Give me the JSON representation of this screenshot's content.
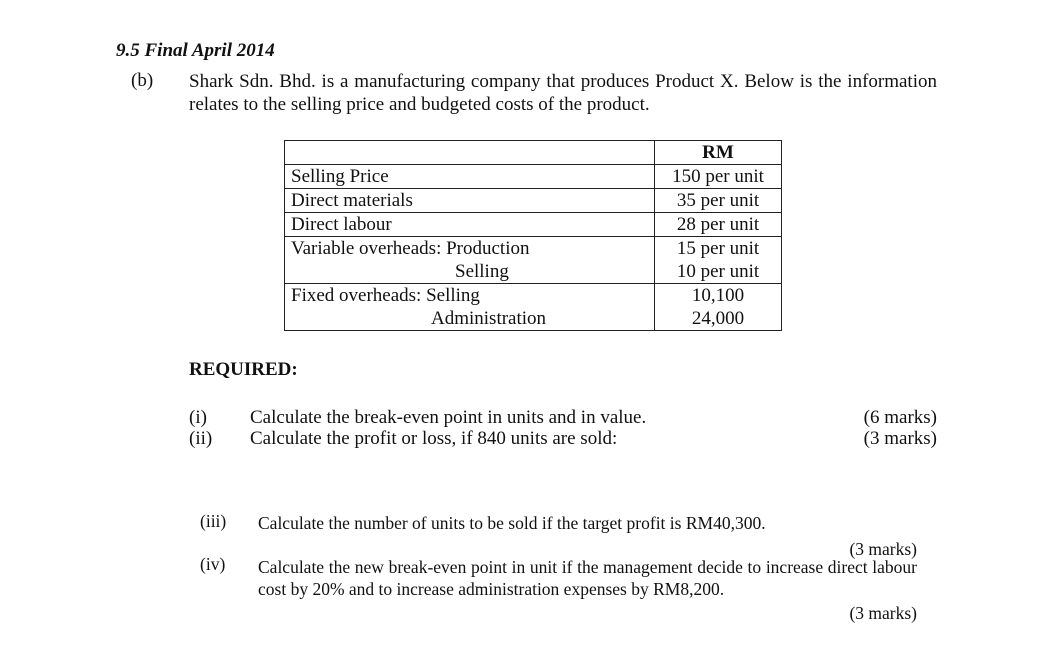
{
  "heading": "9.5 Final April 2014",
  "part": {
    "label": "(b)",
    "intro": "Shark Sdn. Bhd. is a manufacturing company that produces Product X. Below is the information relates to the selling price and budgeted costs of the product."
  },
  "table": {
    "header": "RM",
    "rows": [
      {
        "label": "Selling Price",
        "value": "150 per unit"
      },
      {
        "label": "Direct materials",
        "value": "35 per unit"
      },
      {
        "label": "Direct labour",
        "value": "28 per unit"
      },
      {
        "label": "Variable overheads: Production",
        "value": "15 per unit"
      },
      {
        "label": "Selling",
        "value": "10 per unit"
      },
      {
        "label": "Fixed overheads: Selling",
        "value": "10,100"
      },
      {
        "label": "Administration",
        "value": "24,000"
      }
    ]
  },
  "required": {
    "heading": "REQUIRED:",
    "items": [
      {
        "num": "(i)",
        "text": "Calculate the break-even point in units and in value.",
        "marks": "(6 marks)"
      },
      {
        "num": "(ii)",
        "text": "Calculate the profit or loss, if 840 units are sold:",
        "marks": "(3 marks)"
      },
      {
        "num": "(iii)",
        "text": "Calculate the number of units to be sold if the target profit is RM40,300.",
        "marks": "(3 marks)"
      },
      {
        "num": "(iv)",
        "text": "Calculate the new break-even point in unit if the management decide to increase direct labour cost by 20% and to increase administration expenses by RM8,200.",
        "marks": "(3 marks)"
      }
    ]
  }
}
